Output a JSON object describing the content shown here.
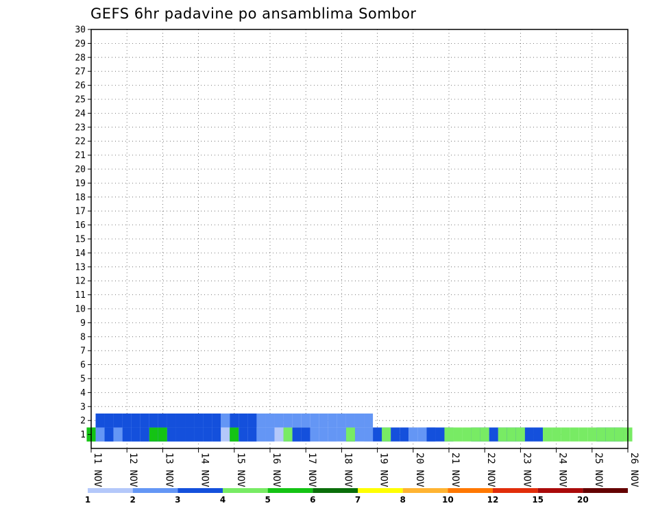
{
  "chart_data": {
    "type": "heatmap",
    "title": "GEFS 6hr padavine po ansamblima Sombor",
    "xlabel": "",
    "ylabel": "",
    "x_ticks": [
      "11 NOV",
      "12 NOV",
      "13 NOV",
      "14 NOV",
      "15 NOV",
      "16 NOV",
      "17 NOV",
      "18 NOV",
      "19 NOV",
      "20 NOV",
      "21 NOV",
      "22 NOV",
      "23 NOV",
      "24 NOV",
      "25 NOV",
      "26 NOV"
    ],
    "y_ticks": [
      1,
      2,
      3,
      4,
      5,
      6,
      7,
      8,
      9,
      10,
      11,
      12,
      13,
      14,
      15,
      16,
      17,
      18,
      19,
      20,
      21,
      22,
      23,
      24,
      25,
      26,
      27,
      28,
      29,
      30
    ],
    "x_unit": "6-hour step from 11 NOV 00Z",
    "xlim": [
      0,
      60
    ],
    "ylim": [
      0,
      30
    ],
    "grid": true,
    "legend": {
      "position": "bottom",
      "labels": [
        "1",
        "2",
        "3",
        "4",
        "5",
        "6",
        "7",
        "8",
        "10",
        "12",
        "15",
        "20"
      ],
      "colors": [
        "#b4c8fa",
        "#6496f5",
        "#1450dc",
        "#78eb64",
        "#14c314",
        "#0a6e0a",
        "#ffff00",
        "#ffb432",
        "#ff7800",
        "#e12d0a",
        "#aa0a0a",
        "#640000"
      ]
    },
    "cells": [
      [
        1,
        0,
        4
      ],
      [
        1,
        0,
        5
      ],
      [
        1,
        1,
        1
      ],
      [
        1,
        1,
        2
      ],
      [
        1,
        2,
        1
      ],
      [
        1,
        2,
        2
      ],
      [
        1,
        2,
        3
      ],
      [
        1,
        3,
        1
      ],
      [
        1,
        3,
        2
      ],
      [
        1,
        4,
        1
      ],
      [
        1,
        4,
        2
      ],
      [
        1,
        4,
        3
      ],
      [
        1,
        5,
        1
      ],
      [
        1,
        5,
        2
      ],
      [
        1,
        5,
        3
      ],
      [
        1,
        6,
        1
      ],
      [
        1,
        6,
        2
      ],
      [
        1,
        6,
        3
      ],
      [
        1,
        7,
        1
      ],
      [
        1,
        7,
        2
      ],
      [
        1,
        7,
        3
      ],
      [
        1,
        7,
        5
      ],
      [
        1,
        8,
        1
      ],
      [
        1,
        8,
        2
      ],
      [
        1,
        8,
        3
      ],
      [
        1,
        8,
        5
      ],
      [
        1,
        9,
        1
      ],
      [
        1,
        9,
        2
      ],
      [
        1,
        9,
        3
      ],
      [
        1,
        10,
        1
      ],
      [
        1,
        10,
        2
      ],
      [
        1,
        10,
        3
      ],
      [
        1,
        11,
        1
      ],
      [
        1,
        11,
        2
      ],
      [
        1,
        11,
        3
      ],
      [
        1,
        12,
        1
      ],
      [
        1,
        12,
        2
      ],
      [
        1,
        12,
        3
      ],
      [
        1,
        13,
        1
      ],
      [
        1,
        13,
        2
      ],
      [
        1,
        13,
        3
      ],
      [
        1,
        14,
        1
      ],
      [
        1,
        14,
        2
      ],
      [
        1,
        14,
        3
      ],
      [
        1,
        15,
        1
      ],
      [
        1,
        16,
        1
      ],
      [
        1,
        16,
        2
      ],
      [
        1,
        16,
        3
      ],
      [
        1,
        16,
        4
      ],
      [
        1,
        16,
        5
      ],
      [
        1,
        17,
        1
      ],
      [
        1,
        17,
        2
      ],
      [
        1,
        17,
        3
      ],
      [
        1,
        18,
        1
      ],
      [
        1,
        18,
        2
      ],
      [
        1,
        18,
        3
      ],
      [
        1,
        19,
        1
      ],
      [
        1,
        19,
        2
      ],
      [
        1,
        20,
        1
      ],
      [
        1,
        20,
        2
      ],
      [
        1,
        21,
        1
      ],
      [
        1,
        22,
        1
      ],
      [
        1,
        22,
        2
      ],
      [
        1,
        22,
        4
      ],
      [
        1,
        23,
        1
      ],
      [
        1,
        23,
        2
      ],
      [
        1,
        23,
        3
      ],
      [
        1,
        24,
        1
      ],
      [
        1,
        24,
        2
      ],
      [
        1,
        24,
        3
      ],
      [
        1,
        25,
        1
      ],
      [
        1,
        25,
        2
      ],
      [
        1,
        26,
        1
      ],
      [
        1,
        26,
        2
      ],
      [
        1,
        27,
        1
      ],
      [
        1,
        27,
        2
      ],
      [
        1,
        28,
        2
      ],
      [
        1,
        29,
        2
      ],
      [
        1,
        29,
        3
      ],
      [
        1,
        29,
        4
      ],
      [
        1,
        30,
        2
      ],
      [
        1,
        31,
        1
      ],
      [
        1,
        31,
        2
      ],
      [
        1,
        32,
        3
      ],
      [
        1,
        33,
        3
      ],
      [
        1,
        33,
        4
      ],
      [
        1,
        34,
        3
      ],
      [
        1,
        35,
        3
      ],
      [
        1,
        36,
        1
      ],
      [
        1,
        36,
        2
      ],
      [
        1,
        37,
        1
      ],
      [
        1,
        37,
        2
      ],
      [
        1,
        38,
        1
      ],
      [
        1,
        38,
        2
      ],
      [
        1,
        38,
        3
      ],
      [
        1,
        39,
        3
      ],
      [
        1,
        40,
        3
      ],
      [
        1,
        40,
        4
      ],
      [
        1,
        41,
        4
      ],
      [
        1,
        42,
        4
      ],
      [
        1,
        43,
        3
      ],
      [
        1,
        43,
        4
      ],
      [
        1,
        44,
        3
      ],
      [
        1,
        44,
        4
      ],
      [
        1,
        45,
        3
      ],
      [
        1,
        46,
        3
      ],
      [
        1,
        46,
        4
      ],
      [
        1,
        47,
        3
      ],
      [
        1,
        47,
        4
      ],
      [
        1,
        48,
        3
      ],
      [
        1,
        48,
        4
      ],
      [
        1,
        49,
        3
      ],
      [
        1,
        50,
        3
      ],
      [
        1,
        51,
        4
      ],
      [
        1,
        52,
        4
      ],
      [
        1,
        53,
        4
      ],
      [
        1,
        54,
        4
      ],
      [
        1,
        55,
        4
      ],
      [
        1,
        56,
        4
      ],
      [
        1,
        57,
        3
      ],
      [
        1,
        57,
        4
      ],
      [
        1,
        58,
        3
      ],
      [
        1,
        58,
        4
      ],
      [
        1,
        59,
        3
      ],
      [
        1,
        59,
        4
      ],
      [
        1,
        60,
        4
      ],
      [
        2,
        1,
        1
      ],
      [
        2,
        1,
        2
      ],
      [
        2,
        1,
        3
      ],
      [
        2,
        2,
        1
      ],
      [
        2,
        2,
        2
      ],
      [
        2,
        2,
        3
      ],
      [
        2,
        3,
        1
      ],
      [
        2,
        3,
        2
      ],
      [
        2,
        3,
        3
      ],
      [
        2,
        4,
        2
      ],
      [
        2,
        4,
        3
      ],
      [
        2,
        5,
        2
      ],
      [
        2,
        5,
        3
      ],
      [
        2,
        6,
        2
      ],
      [
        2,
        6,
        3
      ],
      [
        2,
        7,
        2
      ],
      [
        2,
        7,
        3
      ],
      [
        2,
        8,
        2
      ],
      [
        2,
        8,
        3
      ],
      [
        2,
        9,
        2
      ],
      [
        2,
        9,
        3
      ],
      [
        2,
        10,
        2
      ],
      [
        2,
        10,
        3
      ],
      [
        2,
        11,
        2
      ],
      [
        2,
        11,
        3
      ],
      [
        2,
        12,
        2
      ],
      [
        2,
        12,
        3
      ],
      [
        2,
        13,
        2
      ],
      [
        2,
        13,
        3
      ],
      [
        2,
        14,
        2
      ],
      [
        2,
        14,
        3
      ],
      [
        2,
        15,
        2
      ],
      [
        2,
        16,
        2
      ],
      [
        2,
        16,
        3
      ],
      [
        2,
        17,
        2
      ],
      [
        2,
        17,
        3
      ],
      [
        2,
        18,
        2
      ],
      [
        2,
        18,
        3
      ],
      [
        2,
        19,
        2
      ],
      [
        2,
        20,
        2
      ],
      [
        2,
        21,
        2
      ],
      [
        2,
        22,
        2
      ],
      [
        2,
        23,
        2
      ],
      [
        2,
        24,
        2
      ],
      [
        2,
        25,
        2
      ],
      [
        2,
        26,
        2
      ],
      [
        2,
        27,
        2
      ],
      [
        2,
        28,
        2
      ],
      [
        2,
        29,
        2
      ],
      [
        2,
        30,
        2
      ],
      [
        2,
        31,
        2
      ]
    ]
  }
}
